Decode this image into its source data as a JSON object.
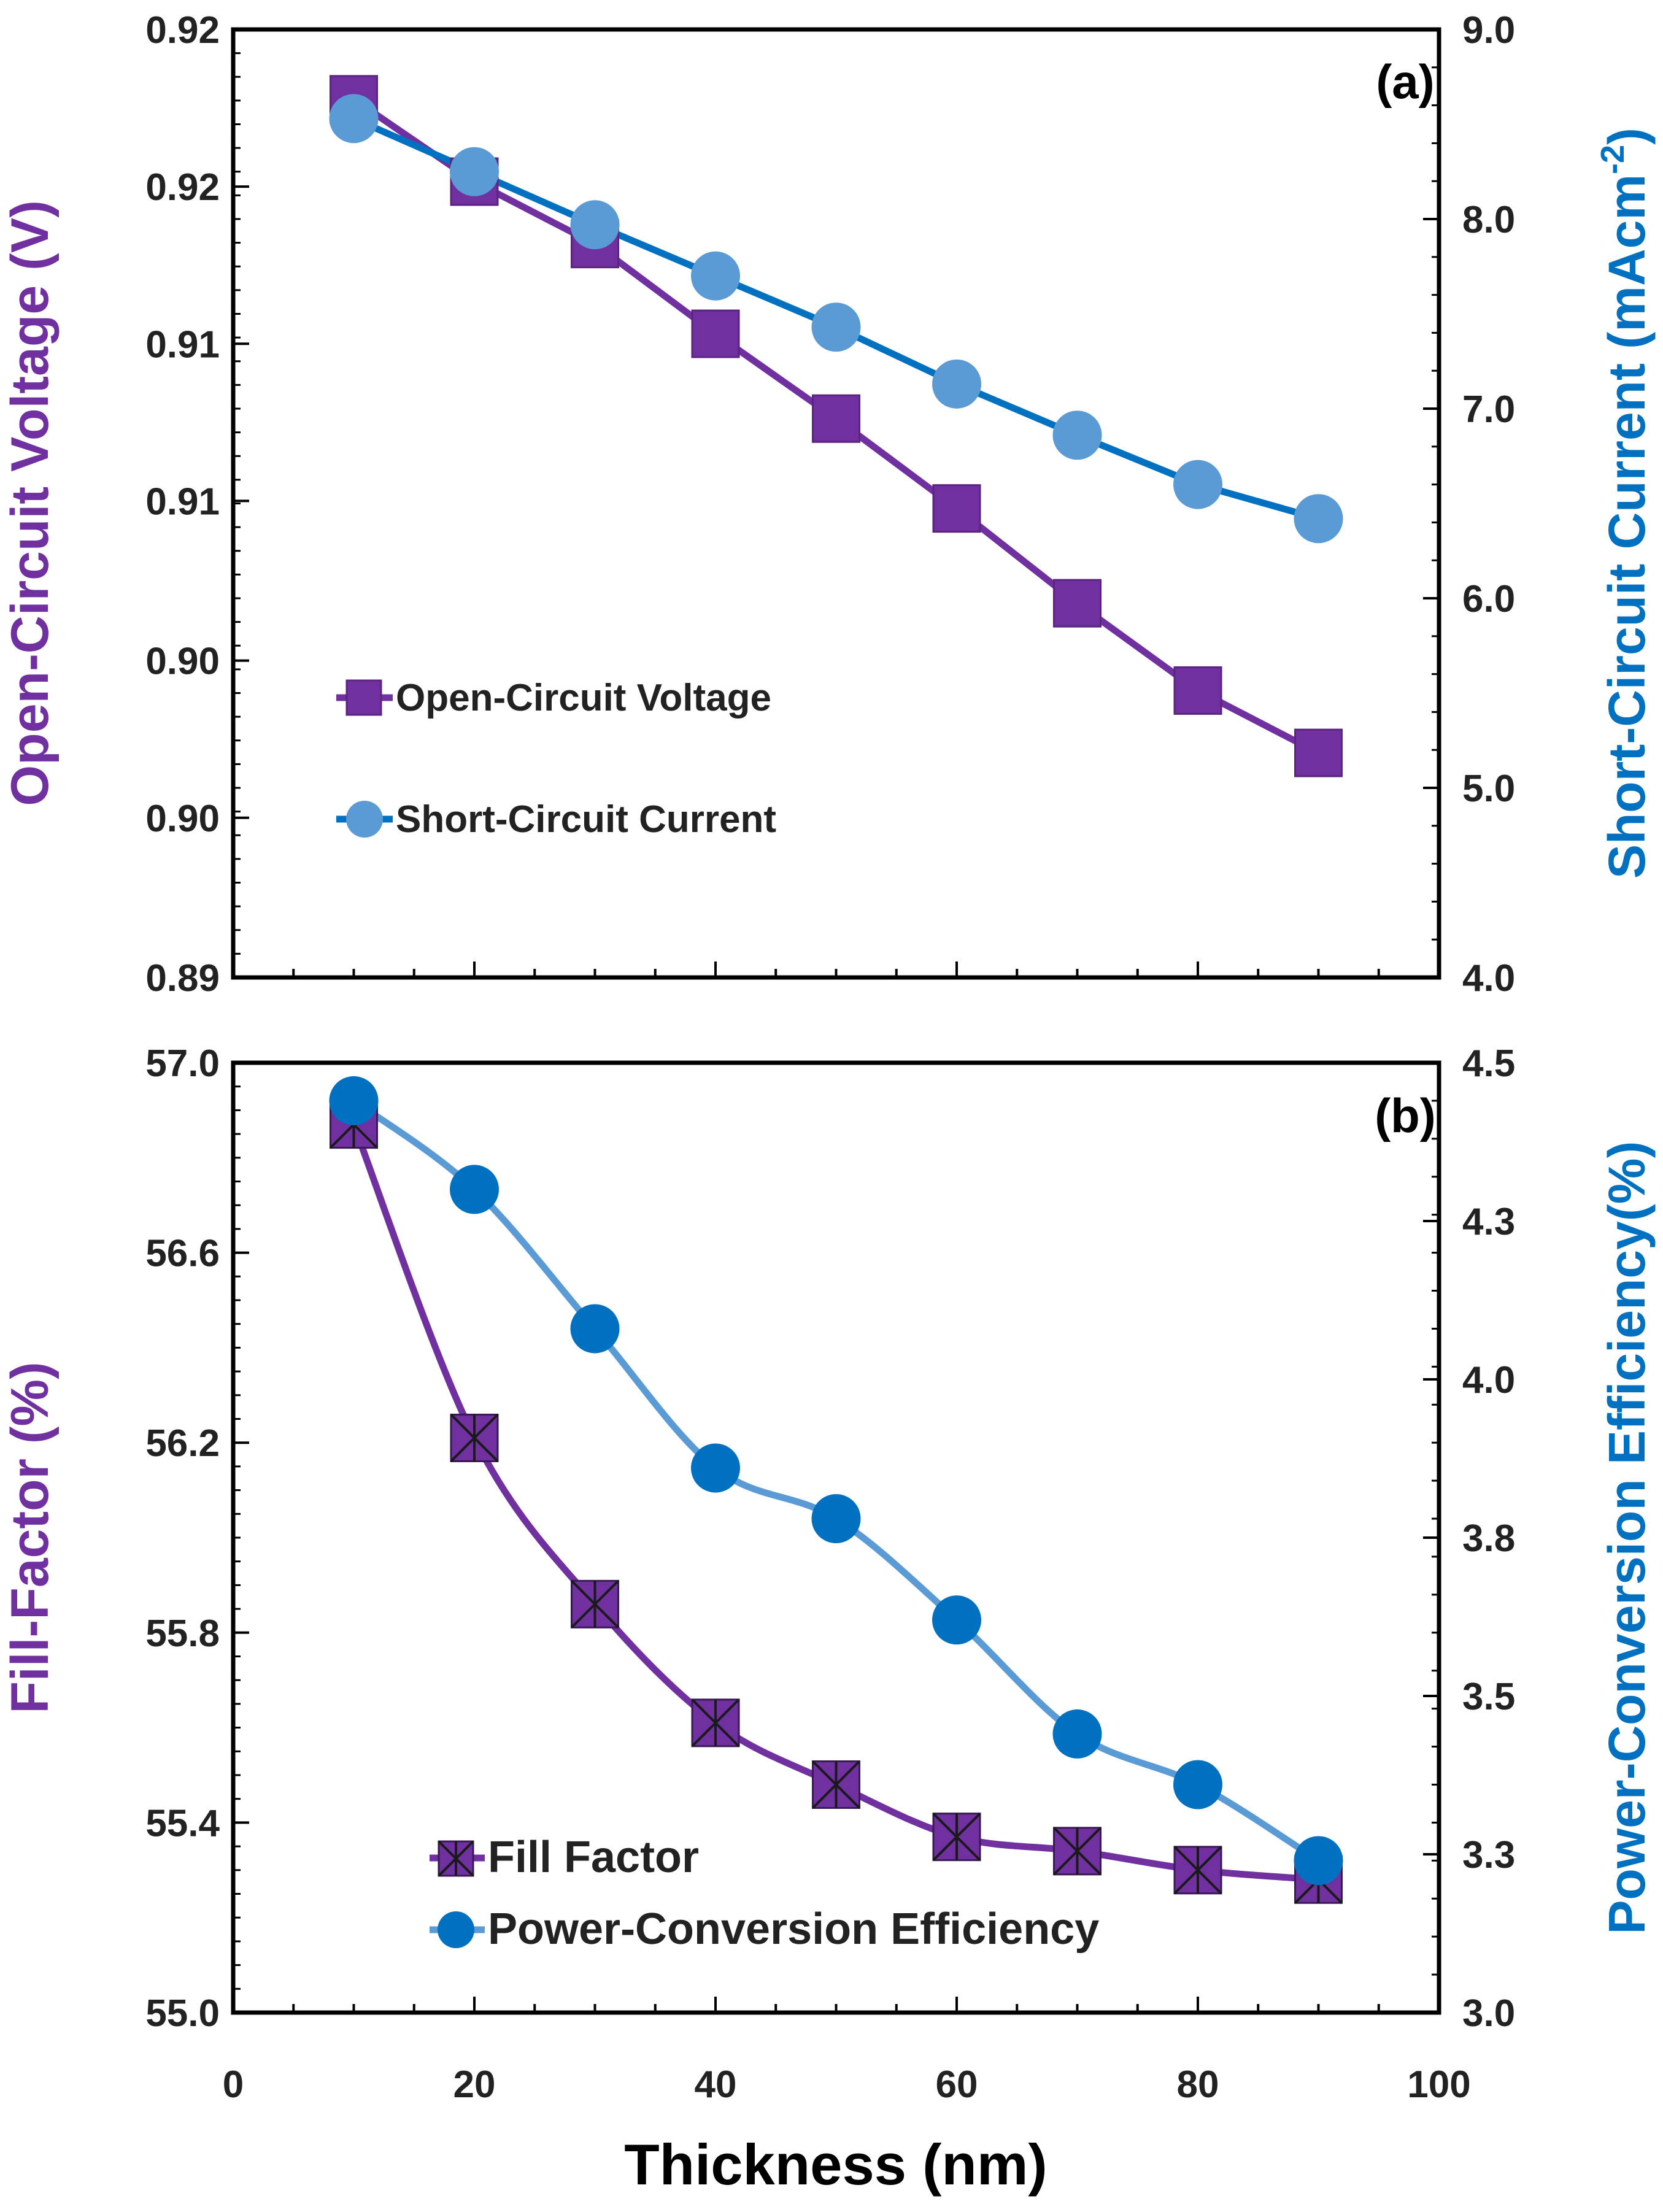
{
  "xlabel": "Thickness (nm)",
  "x_ticks": [
    "0",
    "20",
    "40",
    "60",
    "80",
    "100"
  ],
  "chart_data": [
    {
      "type": "line",
      "panel_label": "(a)",
      "xlim": [
        0,
        100
      ],
      "ylim_left": [
        0.887,
        0.925
      ],
      "ylim_right": [
        4.0,
        9.0
      ],
      "ylabel_left": "Open-Circuit Voltage (V)",
      "ylabel_right": "Short-Circuit Current (mAcm",
      "ylabel_right_sup": "-2",
      "ylabel_right_tail": ")",
      "left_tick_values": [
        0.887,
        0.8934,
        0.8997,
        0.9061,
        0.9124,
        0.9187,
        0.925
      ],
      "left_tick_labels": [
        "0.89",
        "0.90",
        "0.90",
        "0.91",
        "0.91",
        "0.92",
        "0.92"
      ],
      "right_tick_values": [
        4.0,
        5.0,
        6.0,
        7.0,
        8.0,
        9.0
      ],
      "right_tick_labels": [
        "4.0",
        "5.0",
        "6.0",
        "7.0",
        "8.0",
        "9.0"
      ],
      "series": [
        {
          "name": "Open-Circuit Voltage",
          "axis": "left",
          "color": "#7030A0",
          "marker": "square",
          "x": [
            10,
            20,
            30,
            40,
            50,
            60,
            70,
            80,
            90
          ],
          "values": [
            0.9222,
            0.9189,
            0.9164,
            0.9128,
            0.9094,
            0.9058,
            0.902,
            0.8985,
            0.896
          ]
        },
        {
          "name": "Short-Circuit Current",
          "axis": "right",
          "color": "#0070C0",
          "marker_color": "#5B9BD5",
          "marker": "circle",
          "x": [
            10,
            20,
            30,
            40,
            50,
            60,
            70,
            80,
            90
          ],
          "values": [
            8.53,
            8.25,
            7.97,
            7.7,
            7.43,
            7.13,
            6.86,
            6.6,
            6.42
          ]
        }
      ],
      "legend": [
        "Open-Circuit Voltage",
        "Short-Circuit Current"
      ]
    },
    {
      "type": "line",
      "panel_label": "(b)",
      "xlim": [
        0,
        100
      ],
      "ylim_left": [
        55.0,
        57.0
      ],
      "ylim_right": [
        3.0,
        4.5
      ],
      "ylabel_left": "Fill-Factor (%)",
      "ylabel_right": "Power-Conversion Efficiency(%)",
      "left_tick_values": [
        55.0,
        55.4,
        55.8,
        56.2,
        56.6,
        57.0
      ],
      "left_tick_labels": [
        "55.0",
        "55.4",
        "55.8",
        "56.2",
        "56.6",
        "57.0"
      ],
      "right_tick_values": [
        3.0,
        3.25,
        3.5,
        3.75,
        4.0,
        4.25,
        4.5
      ],
      "right_tick_labels": [
        "3.0",
        "3.3",
        "3.5",
        "3.8",
        "4.0",
        "4.3",
        "4.5"
      ],
      "series": [
        {
          "name": "Fill Factor",
          "axis": "left",
          "color": "#7030A0",
          "marker": "square-x",
          "x": [
            10,
            20,
            30,
            40,
            50,
            60,
            70,
            80,
            90
          ],
          "values": [
            56.87,
            56.21,
            55.86,
            55.61,
            55.48,
            55.37,
            55.34,
            55.3,
            55.28
          ]
        },
        {
          "name": "Power-Conversion Efficiency",
          "axis": "right",
          "color": "#5B9BD5",
          "marker_color": "#0070C0",
          "marker": "circle",
          "x": [
            10,
            20,
            30,
            40,
            50,
            60,
            70,
            80,
            90
          ],
          "values": [
            4.44,
            4.3,
            4.08,
            3.86,
            3.78,
            3.62,
            3.44,
            3.36,
            3.24
          ]
        }
      ],
      "legend": [
        "Fill Factor",
        "Power-Conversion Efficiency"
      ]
    }
  ]
}
